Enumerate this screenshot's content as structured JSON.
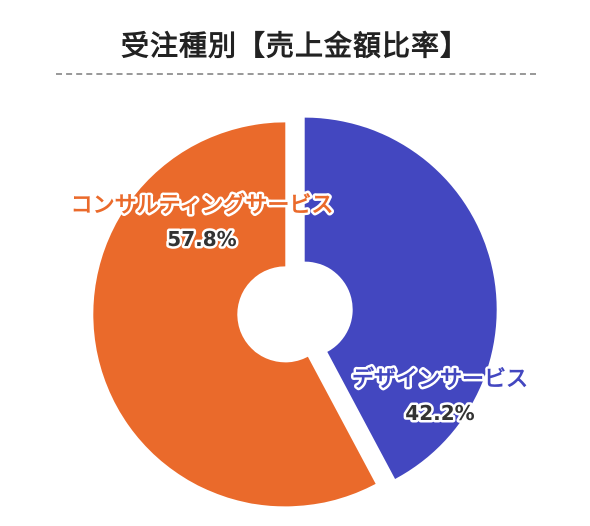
{
  "chart_data": {
    "type": "pie",
    "title": "受注種別【売上金額比率】",
    "slices": [
      {
        "label": "デザインサービス",
        "value": 42.2,
        "value_label": "42.2%",
        "color": "#4347c0"
      },
      {
        "label": "コンサルティングサービス",
        "value": 57.8,
        "value_label": "57.8%",
        "color": "#ea6a2b"
      }
    ],
    "legend": "none",
    "grid": false
  }
}
